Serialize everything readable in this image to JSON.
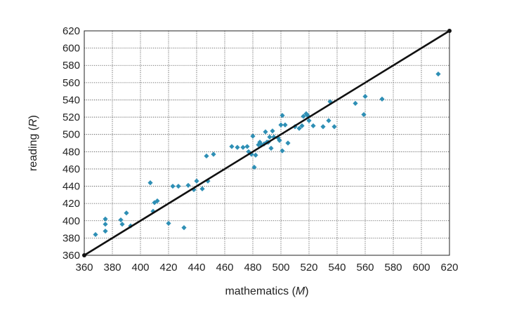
{
  "chart_data": {
    "type": "scatter",
    "title": "",
    "xlabel": "mathematics (M)",
    "xlabel_text": "mathematics (",
    "xlabel_var": "M",
    "xlabel_close": ")",
    "ylabel": "reading (R)",
    "ylabel_text": "reading (",
    "ylabel_var": "R",
    "ylabel_close": ")",
    "xlim": [
      360,
      620
    ],
    "ylim": [
      360,
      620
    ],
    "x_ticks": [
      360,
      380,
      400,
      420,
      440,
      460,
      480,
      500,
      520,
      540,
      560,
      580,
      600,
      620
    ],
    "y_ticks": [
      360,
      380,
      400,
      420,
      440,
      460,
      480,
      500,
      520,
      540,
      560,
      580,
      600,
      620
    ],
    "grid": true,
    "reference_line": {
      "x": [
        360,
        620
      ],
      "y": [
        360,
        620
      ]
    },
    "marker_color": "#2e8fb5",
    "line_color": "#111111",
    "points": [
      [
        368,
        384
      ],
      [
        375,
        402
      ],
      [
        375,
        396
      ],
      [
        375,
        388
      ],
      [
        386,
        401
      ],
      [
        387,
        396
      ],
      [
        390,
        409
      ],
      [
        393,
        394
      ],
      [
        407,
        444
      ],
      [
        409,
        411
      ],
      [
        410,
        421
      ],
      [
        412,
        423
      ],
      [
        420,
        397
      ],
      [
        423,
        440
      ],
      [
        427,
        440
      ],
      [
        431,
        392
      ],
      [
        434,
        441
      ],
      [
        438,
        436
      ],
      [
        440,
        446
      ],
      [
        444,
        437
      ],
      [
        447,
        475
      ],
      [
        448,
        446
      ],
      [
        452,
        477
      ],
      [
        465,
        486
      ],
      [
        469,
        485
      ],
      [
        473,
        485
      ],
      [
        476,
        486
      ],
      [
        477,
        480
      ],
      [
        479,
        477
      ],
      [
        480,
        498
      ],
      [
        481,
        462
      ],
      [
        482,
        476
      ],
      [
        484,
        488
      ],
      [
        485,
        491
      ],
      [
        486,
        488
      ],
      [
        488,
        489
      ],
      [
        489,
        503
      ],
      [
        490,
        491
      ],
      [
        491,
        491
      ],
      [
        492,
        497
      ],
      [
        493,
        484
      ],
      [
        494,
        504
      ],
      [
        495,
        497
      ],
      [
        498,
        496
      ],
      [
        499,
        493
      ],
      [
        500,
        511
      ],
      [
        501,
        522
      ],
      [
        501,
        481
      ],
      [
        503,
        511
      ],
      [
        505,
        490
      ],
      [
        510,
        509
      ],
      [
        513,
        507
      ],
      [
        515,
        510
      ],
      [
        516,
        521
      ],
      [
        518,
        524
      ],
      [
        519,
        522
      ],
      [
        520,
        516
      ],
      [
        523,
        510
      ],
      [
        530,
        509
      ],
      [
        534,
        516
      ],
      [
        535,
        538
      ],
      [
        538,
        509
      ],
      [
        553,
        536
      ],
      [
        559,
        523
      ],
      [
        560,
        544
      ],
      [
        572,
        541
      ],
      [
        612,
        570
      ]
    ]
  }
}
